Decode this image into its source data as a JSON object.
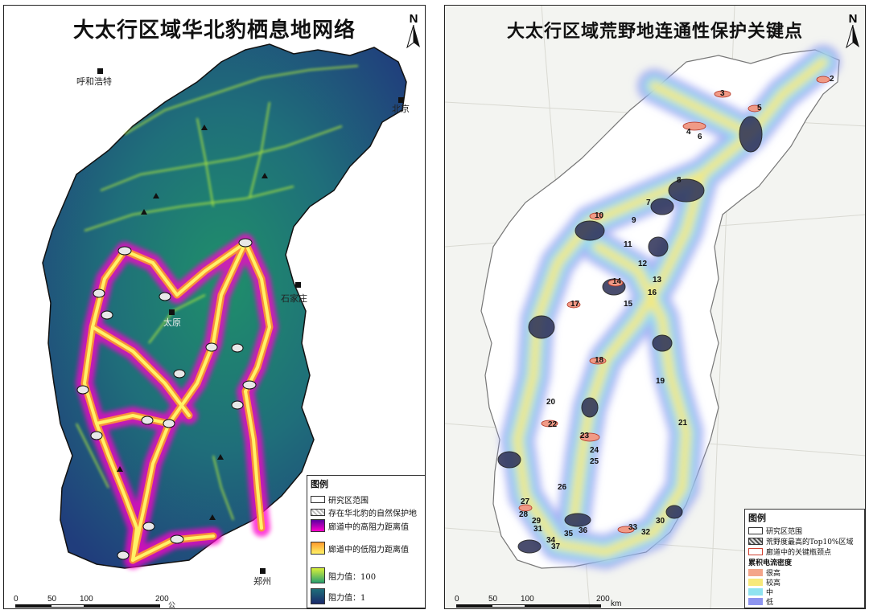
{
  "left_map": {
    "title": "大太行区域华北豹栖息地网络",
    "north": "N",
    "cities": [
      {
        "name": "呼和浩特"
      },
      {
        "name": "北京"
      },
      {
        "name": "石家庄"
      },
      {
        "name": "太原"
      },
      {
        "name": "郑州"
      }
    ],
    "legend": {
      "title": "图例",
      "items": [
        {
          "label": "研究区范围"
        },
        {
          "label": "存在华北豹的自然保护地"
        },
        {
          "label": "廊道中的高阻力距离值"
        },
        {
          "label": "廊道中的低阻力距离值"
        },
        {
          "label": "阻力值：100"
        },
        {
          "label": "阻力值：1"
        }
      ]
    },
    "scale": {
      "ticks": [
        "0",
        "50",
        "100",
        "200"
      ],
      "unit": "公里"
    },
    "colors": {
      "ramp_low": "#1b2a6b",
      "ramp_mid": "#1f8a6a",
      "ramp_high": "#c8f03a",
      "corridor_high": "#ff00c8",
      "corridor_low": "#ffee33"
    }
  },
  "right_map": {
    "title": "大太行区域荒野地连通性保护关键点",
    "north": "N",
    "pinch_points": [
      "2",
      "3",
      "4",
      "5",
      "6",
      "7",
      "8",
      "9",
      "10",
      "11",
      "12",
      "13",
      "14",
      "15",
      "16",
      "17",
      "18",
      "19",
      "20",
      "21",
      "22",
      "23",
      "24",
      "25",
      "26",
      "27",
      "28",
      "29",
      "30",
      "31",
      "32",
      "33",
      "34",
      "35",
      "36",
      "37"
    ],
    "legend": {
      "title": "图例",
      "items": [
        {
          "label": "研究区范围"
        },
        {
          "label": "荒野度最高的Top10%区域"
        },
        {
          "label": "廊道中的关键瓶颈点"
        }
      ],
      "density_title": "累积电流密度",
      "density": [
        {
          "label": "很高",
          "color": "#f4a58a"
        },
        {
          "label": "较高",
          "color": "#f7e97a"
        },
        {
          "label": "中",
          "color": "#8fe3f0"
        },
        {
          "label": "低",
          "color": "#8e95f0"
        }
      ]
    },
    "scale": {
      "ticks": [
        "0",
        "50",
        "100",
        "200"
      ],
      "unit": "km"
    }
  }
}
